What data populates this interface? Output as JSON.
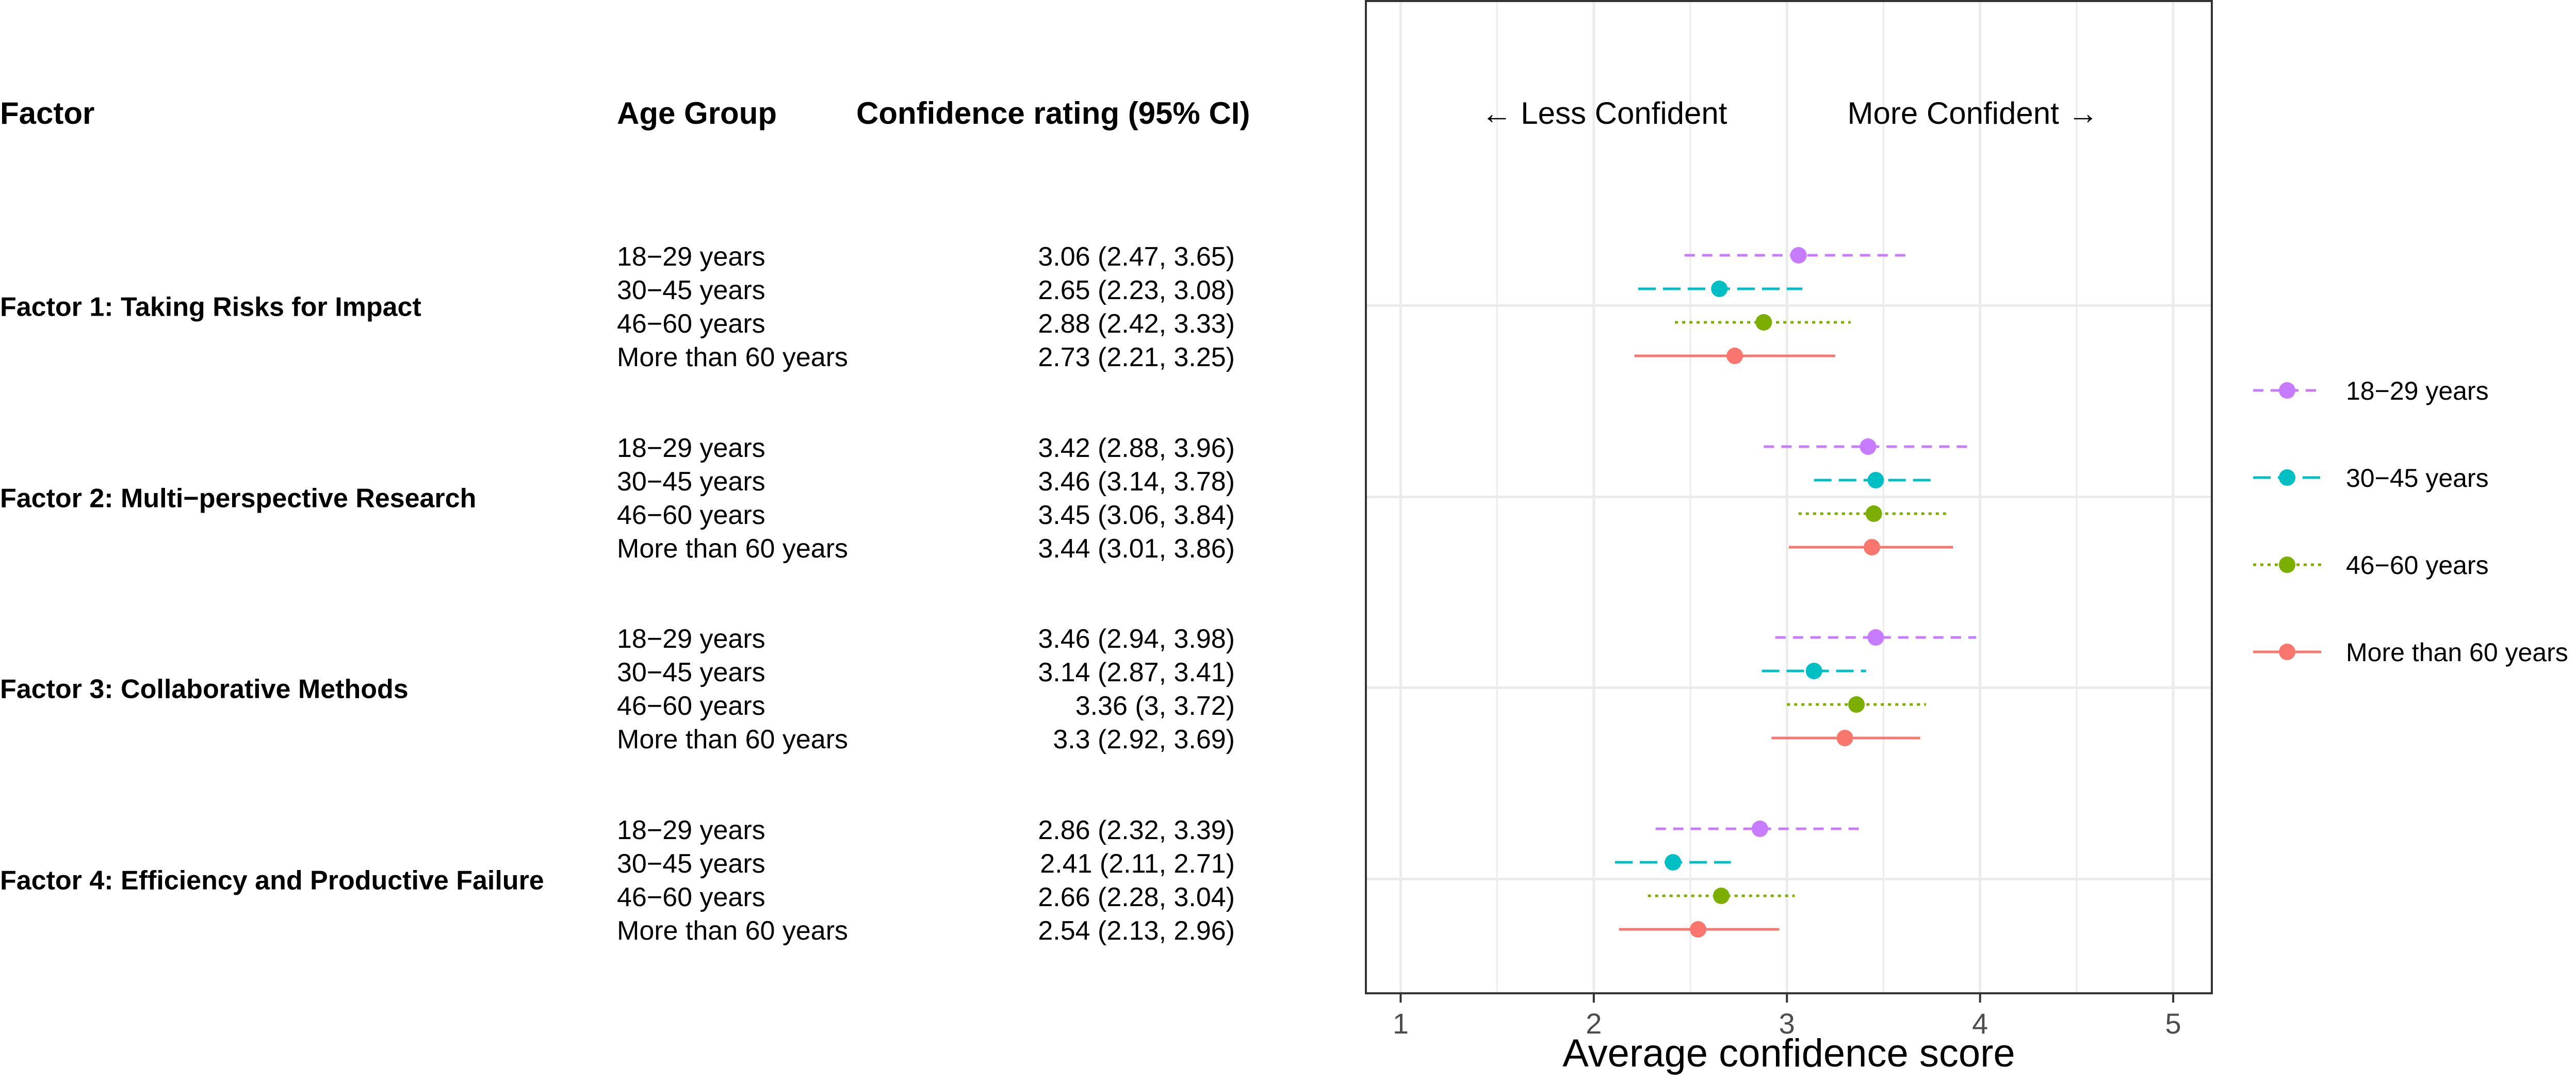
{
  "headers": {
    "factor": "Factor",
    "age_group": "Age Group",
    "rating": "Confidence rating (95% CI)"
  },
  "direction_labels": {
    "less": "← Less Confident",
    "more": "More Confident →"
  },
  "chart_data": {
    "type": "scatter",
    "subtype": "forest-plot",
    "xlabel": "Average confidence score",
    "xlim": [
      0.82,
      5.2
    ],
    "xticks": [
      1,
      2,
      3,
      4,
      5
    ],
    "grid": true,
    "legend_position": "right",
    "series": [
      {
        "name": "18−29 years",
        "color": "#C77CFF",
        "line": "dashed"
      },
      {
        "name": "30−45 years",
        "color": "#00BFC4",
        "line": "longdash"
      },
      {
        "name": "46−60 years",
        "color": "#7CAE00",
        "line": "dotted"
      },
      {
        "name": "More than 60 years",
        "color": "#F8766D",
        "line": "solid"
      }
    ],
    "factors": [
      {
        "name": "Factor 1: Taking Risks for Impact",
        "rows": [
          {
            "group": "18−29 years",
            "est": 3.06,
            "lo": 2.47,
            "hi": 3.65,
            "label": "3.06 (2.47, 3.65)"
          },
          {
            "group": "30−45 years",
            "est": 2.65,
            "lo": 2.23,
            "hi": 3.08,
            "label": "2.65 (2.23, 3.08)"
          },
          {
            "group": "46−60 years",
            "est": 2.88,
            "lo": 2.42,
            "hi": 3.33,
            "label": "2.88 (2.42, 3.33)"
          },
          {
            "group": "More than 60 years",
            "est": 2.73,
            "lo": 2.21,
            "hi": 3.25,
            "label": "2.73 (2.21, 3.25)"
          }
        ]
      },
      {
        "name": "Factor 2: Multi−perspective Research",
        "rows": [
          {
            "group": "18−29 years",
            "est": 3.42,
            "lo": 2.88,
            "hi": 3.96,
            "label": "3.42 (2.88, 3.96)"
          },
          {
            "group": "30−45 years",
            "est": 3.46,
            "lo": 3.14,
            "hi": 3.78,
            "label": "3.46 (3.14, 3.78)"
          },
          {
            "group": "46−60 years",
            "est": 3.45,
            "lo": 3.06,
            "hi": 3.84,
            "label": "3.45 (3.06, 3.84)"
          },
          {
            "group": "More than 60 years",
            "est": 3.44,
            "lo": 3.01,
            "hi": 3.86,
            "label": "3.44 (3.01, 3.86)"
          }
        ]
      },
      {
        "name": "Factor 3: Collaborative Methods",
        "rows": [
          {
            "group": "18−29 years",
            "est": 3.46,
            "lo": 2.94,
            "hi": 3.98,
            "label": "3.46 (2.94, 3.98)"
          },
          {
            "group": "30−45 years",
            "est": 3.14,
            "lo": 2.87,
            "hi": 3.41,
            "label": "3.14 (2.87, 3.41)"
          },
          {
            "group": "46−60 years",
            "est": 3.36,
            "lo": 3.0,
            "hi": 3.72,
            "label": "3.36 (3, 3.72)"
          },
          {
            "group": "More than 60 years",
            "est": 3.3,
            "lo": 2.92,
            "hi": 3.69,
            "label": "3.3 (2.92, 3.69)"
          }
        ]
      },
      {
        "name": "Factor 4: Efficiency and Productive Failure",
        "rows": [
          {
            "group": "18−29 years",
            "est": 2.86,
            "lo": 2.32,
            "hi": 3.39,
            "label": "2.86 (2.32, 3.39)"
          },
          {
            "group": "30−45 years",
            "est": 2.41,
            "lo": 2.11,
            "hi": 2.71,
            "label": "2.41 (2.11, 2.71)"
          },
          {
            "group": "46−60 years",
            "est": 2.66,
            "lo": 2.28,
            "hi": 3.04,
            "label": "2.66 (2.28, 3.04)"
          },
          {
            "group": "More than 60 years",
            "est": 2.54,
            "lo": 2.13,
            "hi": 2.96,
            "label": "2.54 (2.13, 2.96)"
          }
        ]
      }
    ]
  }
}
